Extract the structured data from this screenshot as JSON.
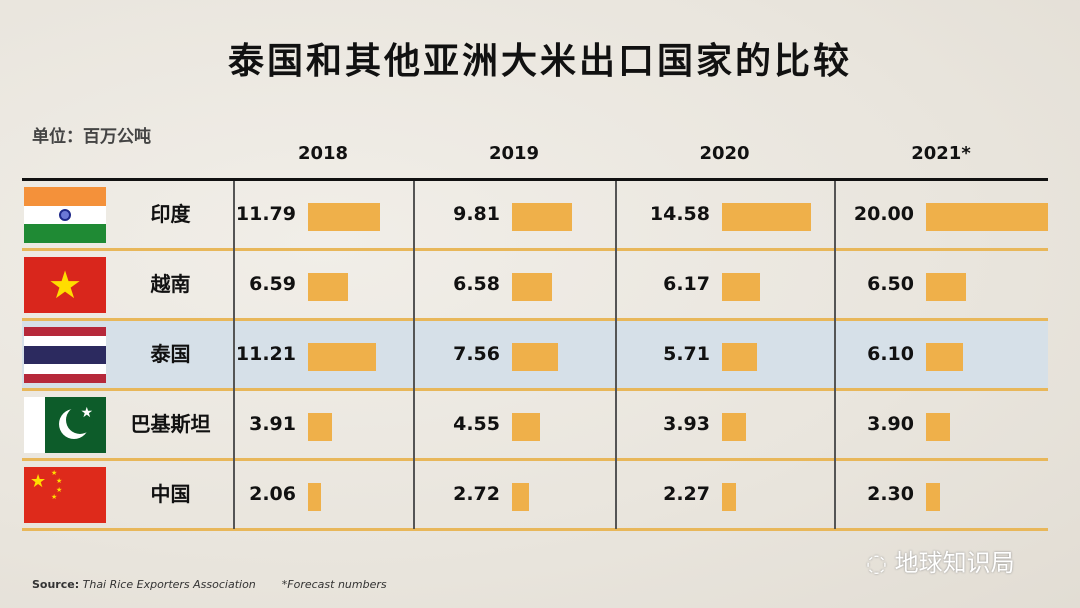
{
  "title": "泰国和其他亚洲大米出口国家的比较",
  "unit": "单位：百万公吨",
  "footer": {
    "source_label": "Source:",
    "source": "Thai Rice Exporters Association",
    "note": "*Forecast numbers"
  },
  "watermark": "地球知识局",
  "colors": {
    "bar": "#efb04a",
    "highlight_row": "#d6e0e8",
    "row_divider": "#e8b75a"
  },
  "chart_data": {
    "type": "table",
    "title": "泰国和其他亚洲大米出口国家的比较",
    "unit": "单位：百万公吨",
    "columns": [
      "2018",
      "2019",
      "2020",
      "2021*"
    ],
    "rows": [
      {
        "country": "印度",
        "flag": "india-flag",
        "values": [
          "11.79",
          "9.81",
          "14.58",
          "20.00"
        ]
      },
      {
        "country": "越南",
        "flag": "vietnam-flag",
        "values": [
          "6.59",
          "6.58",
          "6.17",
          "6.50"
        ]
      },
      {
        "country": "泰国",
        "flag": "thailand-flag",
        "highlighted": true,
        "values": [
          "11.21",
          "7.56",
          "5.71",
          "6.10"
        ]
      },
      {
        "country": "巴基斯坦",
        "flag": "pakistan-flag",
        "values": [
          "3.91",
          "4.55",
          "3.93",
          "3.90"
        ]
      },
      {
        "country": "中国",
        "flag": "china-flag",
        "values": [
          "2.06",
          "2.72",
          "2.27",
          "2.30"
        ]
      }
    ]
  }
}
